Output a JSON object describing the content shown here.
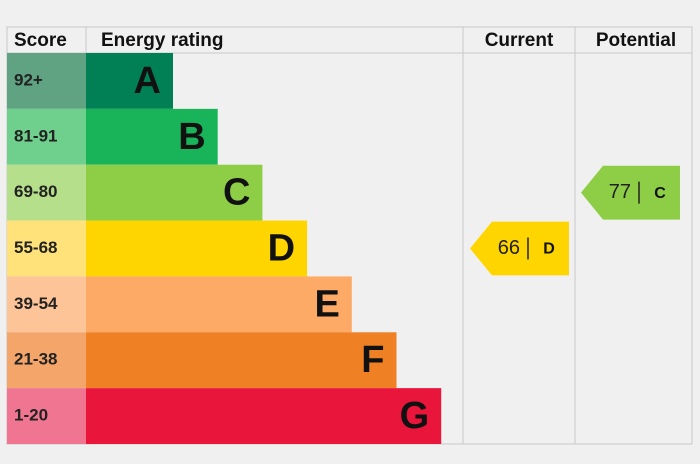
{
  "chart_data": {
    "type": "epc",
    "headers": [
      "Score",
      "Energy rating",
      "Current",
      "Potential"
    ],
    "bands": [
      {
        "score": "92+",
        "band": "A",
        "color": "#008054",
        "score_color": "#5fa383"
      },
      {
        "score": "81-91",
        "band": "B",
        "color": "#19b459",
        "score_color": "#6fcf8c"
      },
      {
        "score": "69-80",
        "band": "C",
        "color": "#8dce46",
        "score_color": "#b6df8b"
      },
      {
        "score": "55-68",
        "band": "D",
        "color": "#ffd500",
        "score_color": "#ffe37a"
      },
      {
        "score": "39-54",
        "band": "E",
        "color": "#fcaa65",
        "score_color": "#fdc597"
      },
      {
        "score": "21-38",
        "band": "F",
        "color": "#ef8023",
        "score_color": "#f4a66a"
      },
      {
        "score": "1-20",
        "band": "G",
        "color": "#e9153b",
        "score_color": "#f07590"
      }
    ],
    "current": {
      "value": 66,
      "band": "D"
    },
    "potential": {
      "value": 77,
      "band": "C"
    }
  }
}
